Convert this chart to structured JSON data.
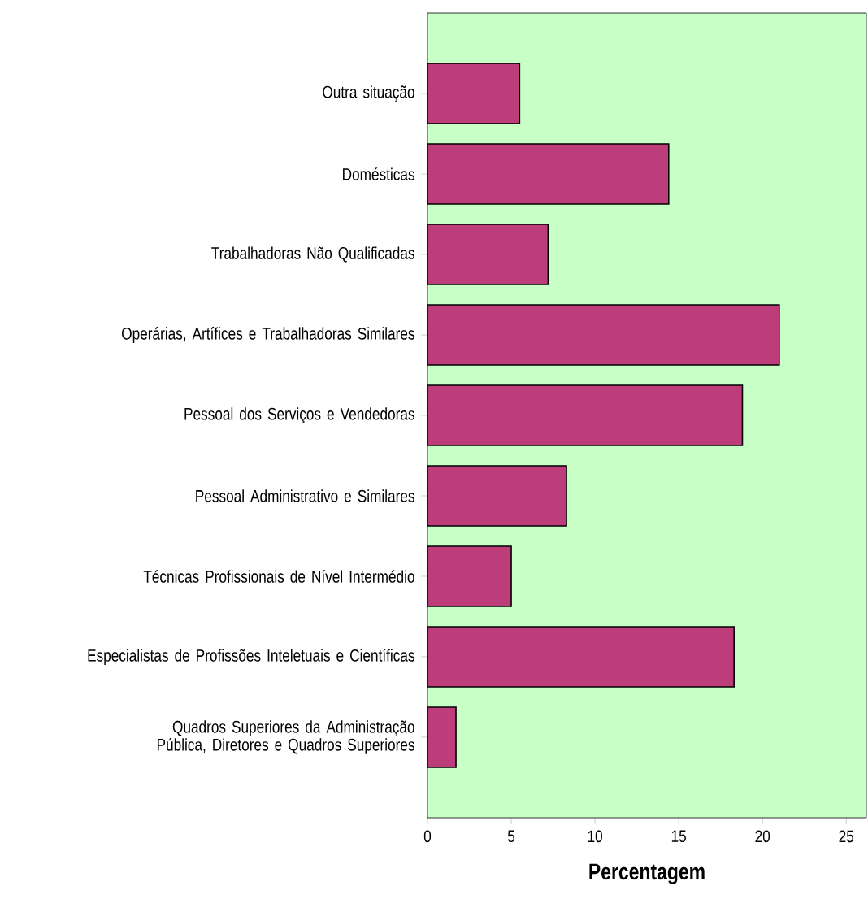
{
  "chart_data": {
    "type": "bar",
    "orientation": "horizontal",
    "xlabel": "Percentagem",
    "categories": [
      "Outra situação",
      "Domésticas",
      "Trabalhadoras Não Qualificadas",
      "Operárias, Artífices e Trabalhadoras Similares",
      "Pessoal dos Serviços e Vendedoras",
      "Pessoal Administrativo e Similares",
      "Técnicas Profissionais de Nível Intermédio",
      "Especialistas de  Profissões Inteletuais e Científicas",
      "Quadros Superiores da Administração Pública, Diretores e Quadros Superiores"
    ],
    "values": [
      5.5,
      14.4,
      7.2,
      21.0,
      18.8,
      8.3,
      5.0,
      18.3,
      1.7
    ],
    "color": "#bc3d7a",
    "xlim": [
      0,
      26.2
    ],
    "xticks": [
      0,
      5,
      10,
      15,
      20,
      25
    ],
    "grid": false
  }
}
